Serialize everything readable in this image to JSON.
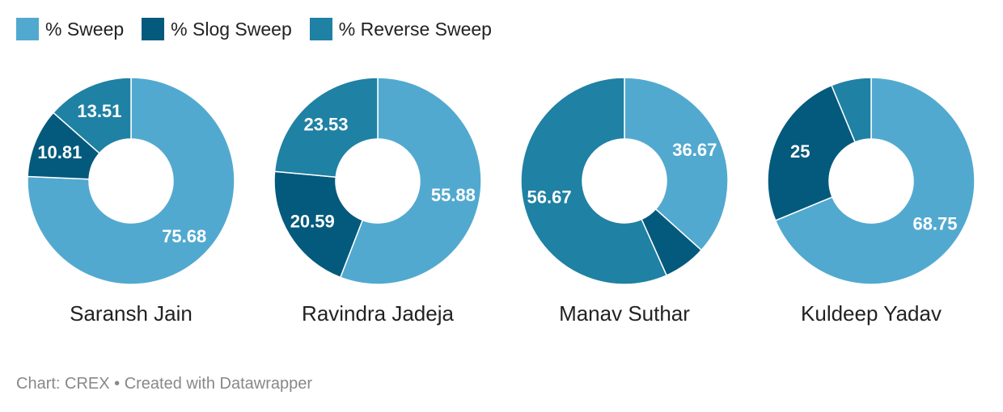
{
  "chart_data": {
    "type": "pie",
    "subtype": "donut",
    "legend_position": "top-left",
    "series": [
      {
        "name": "% Sweep",
        "color": "#52a9cf"
      },
      {
        "name": "% Slog Sweep",
        "color": "#035a7c"
      },
      {
        "name": "% Reverse Sweep",
        "color": "#1f81a3"
      }
    ],
    "charts": [
      {
        "name": "Saransh Jain",
        "values": [
          75.68,
          10.81,
          13.51
        ],
        "labels": [
          "75.68",
          "10.81",
          "13.51"
        ]
      },
      {
        "name": "Ravindra Jadeja",
        "values": [
          55.88,
          20.59,
          23.53
        ],
        "labels": [
          "55.88",
          "20.59",
          "23.53"
        ]
      },
      {
        "name": "Manav Suthar",
        "values": [
          36.67,
          6.66,
          56.67
        ],
        "labels": [
          "36.67",
          "",
          "56.67"
        ]
      },
      {
        "name": "Kuldeep Yadav",
        "values": [
          68.75,
          25,
          6.25
        ],
        "labels": [
          "68.75",
          "25",
          ""
        ]
      }
    ]
  },
  "footer": "Chart: CREX • Created with Datawrapper"
}
